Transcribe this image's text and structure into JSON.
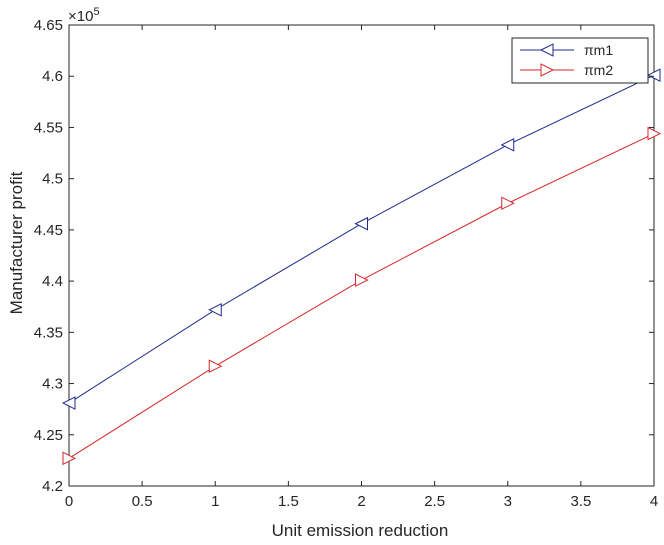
{
  "chart_data": {
    "type": "line",
    "title": "",
    "xlabel": "Unit emission reduction",
    "ylabel": "Manufacturer profit",
    "y_exponent_label": "×10",
    "y_exponent_power": "5",
    "xlim": [
      0,
      4
    ],
    "ylim": [
      4.2,
      4.65
    ],
    "x_ticks": [
      0,
      0.5,
      1,
      1.5,
      2,
      2.5,
      3,
      3.5,
      4
    ],
    "x_tick_labels": [
      "0",
      "0.5",
      "1",
      "1.5",
      "2",
      "2.5",
      "3",
      "3.5",
      "4"
    ],
    "y_ticks": [
      4.2,
      4.25,
      4.3,
      4.35,
      4.4,
      4.45,
      4.5,
      4.55,
      4.6,
      4.65
    ],
    "y_tick_labels": [
      "4.2",
      "4.25",
      "4.3",
      "4.35",
      "4.4",
      "4.45",
      "4.5",
      "4.55",
      "4.6",
      "4.65"
    ],
    "grid": false,
    "legend_position": "top-right",
    "x": [
      0,
      1,
      2,
      3,
      4
    ],
    "series": [
      {
        "name": "πm1",
        "marker": "triangle-left",
        "color": "#1f2a8c",
        "values": [
          4.281,
          4.372,
          4.456,
          4.533,
          4.601
        ]
      },
      {
        "name": "πm2",
        "marker": "triangle-right",
        "color": "#d62728",
        "values": [
          4.227,
          4.317,
          4.401,
          4.476,
          4.544
        ]
      }
    ]
  }
}
